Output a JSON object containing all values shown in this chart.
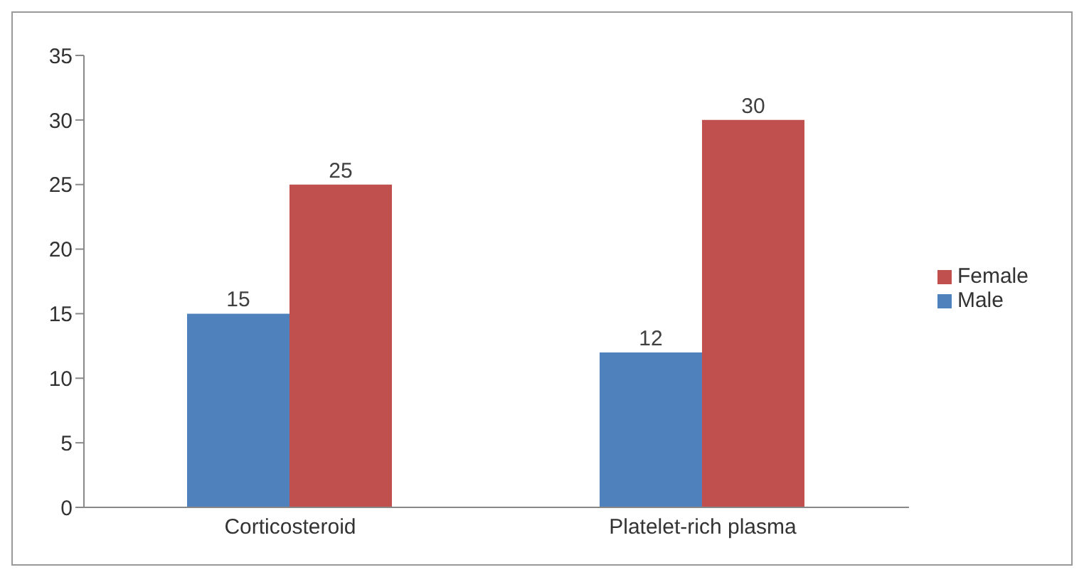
{
  "chart_data": {
    "type": "bar",
    "categories": [
      "Corticosteroid",
      "Platelet-rich plasma"
    ],
    "series": [
      {
        "name": "Male",
        "color": "#4f81bd",
        "values": [
          15,
          12
        ]
      },
      {
        "name": "Female",
        "color": "#c0504d",
        "values": [
          25,
          30
        ]
      }
    ],
    "ylim": [
      0,
      35
    ],
    "yticks": [
      0,
      5,
      10,
      15,
      20,
      25,
      30,
      35
    ],
    "legend": "right",
    "data_labels": true
  }
}
